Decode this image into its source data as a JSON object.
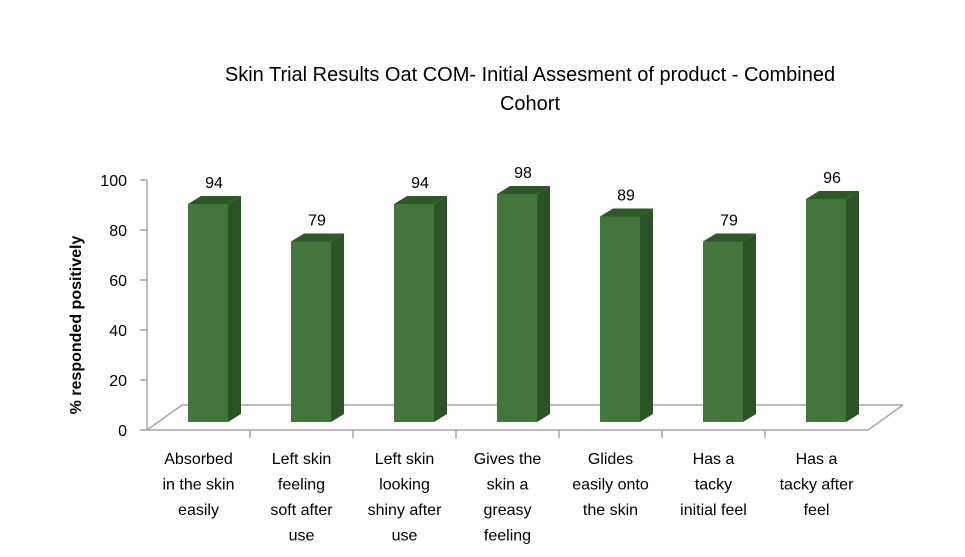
{
  "chart_data": {
    "type": "bar",
    "title": "Skin Trial Results Oat COM- Initial Assesment of product - Combined Cohort",
    "title_lines": [
      "Skin Trial Results Oat COM- Initial Assesment of product - Combined",
      "Cohort"
    ],
    "ylabel": "% responded positively",
    "xlabel": "",
    "ylim": [
      0,
      100
    ],
    "yticks": [
      "0",
      "20",
      "40",
      "60",
      "80",
      "100"
    ],
    "categories": [
      "Absorbed in the skin easily",
      "Left skin feeling soft after use",
      "Left skin looking shiny after use",
      "Gives the skin a greasy feeling",
      "Glides easily onto the skin",
      "Has a tacky initial feel",
      "Has a tacky after feel"
    ],
    "category_lines": [
      [
        "Absorbed",
        "in the skin",
        "easily"
      ],
      [
        "Left skin",
        "feeling",
        "soft after",
        "use"
      ],
      [
        "Left skin",
        "looking",
        "shiny after",
        "use"
      ],
      [
        "Gives the",
        "skin a",
        "greasy",
        "feeling"
      ],
      [
        "Glides",
        "easily onto",
        "the skin"
      ],
      [
        "Has a",
        "tacky",
        "initial feel"
      ],
      [
        "Has a",
        "tacky after",
        "feel"
      ]
    ],
    "values": [
      94,
      79,
      94,
      98,
      89,
      79,
      96
    ],
    "data_labels": [
      "94",
      "79",
      "94",
      "98",
      "89",
      "79",
      "96"
    ],
    "grid": false,
    "legend": "none",
    "colors": {
      "bar_front": "#41773A",
      "bar_side": "#2D5228",
      "bar_top": "#30572A",
      "axis": "#A6A6A6"
    }
  }
}
